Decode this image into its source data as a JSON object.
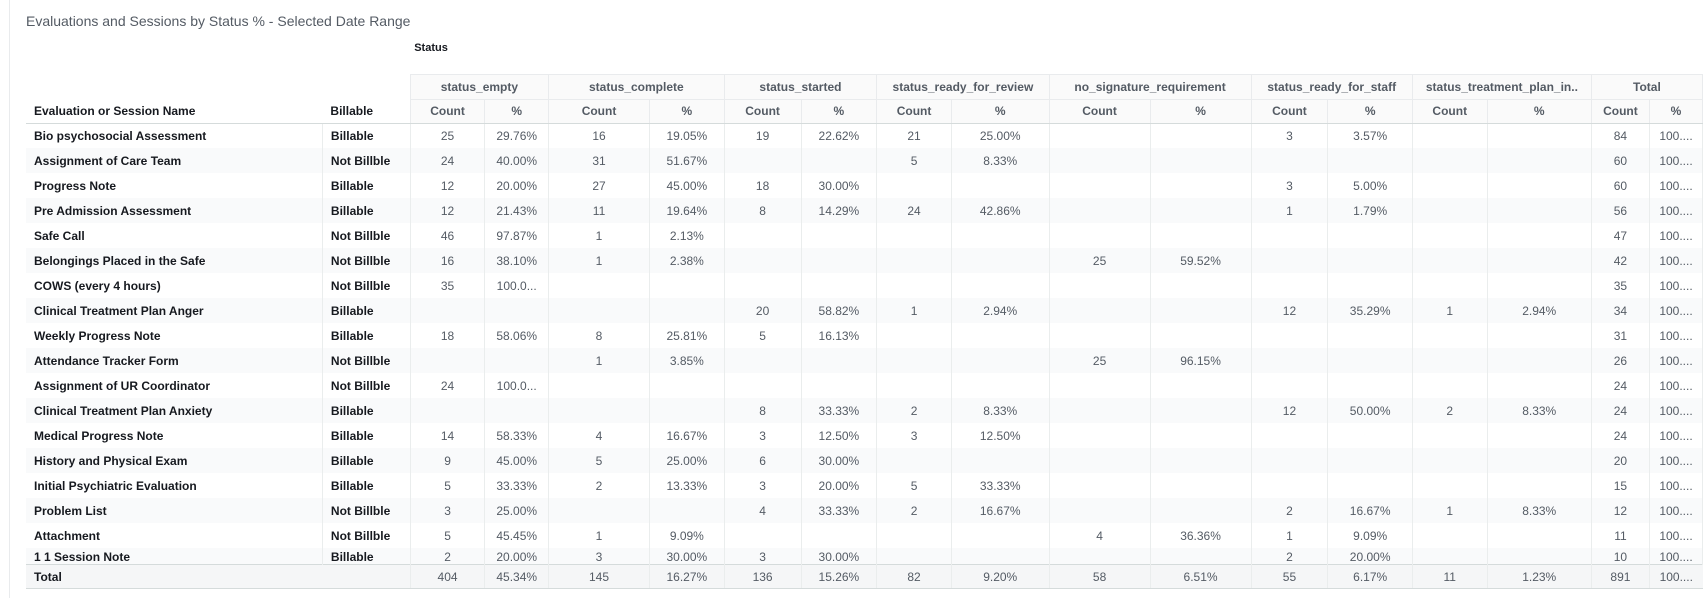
{
  "title": "Evaluations and Sessions by Status % - Selected Date Range",
  "status_label": "Status",
  "row_header_name": "Evaluation or Session Name",
  "row_header_billable": "Billable",
  "groups": [
    {
      "label": "status_empty"
    },
    {
      "label": "status_complete"
    },
    {
      "label": "status_started"
    },
    {
      "label": "status_ready_for_review"
    },
    {
      "label": "no_signature_requirement"
    },
    {
      "label": "status_ready_for_staff"
    },
    {
      "label": "status_treatment_plan_in.."
    },
    {
      "label": "Total"
    }
  ],
  "sub_count": "Count",
  "sub_pct": "%",
  "rows": [
    {
      "name": "Bio psychosocial Assessment",
      "billable": "Billable",
      "cells": [
        "25",
        "29.76%",
        "16",
        "19.05%",
        "19",
        "22.62%",
        "21",
        "25.00%",
        "",
        "",
        "3",
        "3.57%",
        "",
        "",
        "84",
        "100...."
      ]
    },
    {
      "name": "Assignment of Care Team",
      "billable": "Not Billble",
      "cells": [
        "24",
        "40.00%",
        "31",
        "51.67%",
        "",
        "",
        "5",
        "8.33%",
        "",
        "",
        "",
        "",
        "",
        "",
        "60",
        "100...."
      ]
    },
    {
      "name": "Progress Note",
      "billable": "Billable",
      "cells": [
        "12",
        "20.00%",
        "27",
        "45.00%",
        "18",
        "30.00%",
        "",
        "",
        "",
        "",
        "3",
        "5.00%",
        "",
        "",
        "60",
        "100...."
      ]
    },
    {
      "name": "Pre Admission Assessment",
      "billable": "Billable",
      "cells": [
        "12",
        "21.43%",
        "11",
        "19.64%",
        "8",
        "14.29%",
        "24",
        "42.86%",
        "",
        "",
        "1",
        "1.79%",
        "",
        "",
        "56",
        "100...."
      ]
    },
    {
      "name": "Safe Call",
      "billable": "Not Billble",
      "cells": [
        "46",
        "97.87%",
        "1",
        "2.13%",
        "",
        "",
        "",
        "",
        "",
        "",
        "",
        "",
        "",
        "",
        "47",
        "100...."
      ]
    },
    {
      "name": "Belongings Placed in the Safe",
      "billable": "Not Billble",
      "cells": [
        "16",
        "38.10%",
        "1",
        "2.38%",
        "",
        "",
        "",
        "",
        "25",
        "59.52%",
        "",
        "",
        "",
        "",
        "42",
        "100...."
      ]
    },
    {
      "name": "COWS (every 4 hours)",
      "billable": "Not Billble",
      "cells": [
        "35",
        "100.0...",
        "",
        "",
        "",
        "",
        "",
        "",
        "",
        "",
        "",
        "",
        "",
        "",
        "35",
        "100...."
      ]
    },
    {
      "name": "Clinical Treatment Plan Anger",
      "billable": "Billable",
      "cells": [
        "",
        "",
        "",
        "",
        "20",
        "58.82%",
        "1",
        "2.94%",
        "",
        "",
        "12",
        "35.29%",
        "1",
        "2.94%",
        "34",
        "100...."
      ]
    },
    {
      "name": "Weekly Progress Note",
      "billable": "Billable",
      "cells": [
        "18",
        "58.06%",
        "8",
        "25.81%",
        "5",
        "16.13%",
        "",
        "",
        "",
        "",
        "",
        "",
        "",
        "",
        "31",
        "100...."
      ]
    },
    {
      "name": "Attendance Tracker Form",
      "billable": "Not Billble",
      "cells": [
        "",
        "",
        "1",
        "3.85%",
        "",
        "",
        "",
        "",
        "25",
        "96.15%",
        "",
        "",
        "",
        "",
        "26",
        "100...."
      ]
    },
    {
      "name": "Assignment of UR Coordinator",
      "billable": "Not Billble",
      "cells": [
        "24",
        "100.0...",
        "",
        "",
        "",
        "",
        "",
        "",
        "",
        "",
        "",
        "",
        "",
        "",
        "24",
        "100...."
      ]
    },
    {
      "name": "Clinical Treatment Plan Anxiety",
      "billable": "Billable",
      "cells": [
        "",
        "",
        "",
        "",
        "8",
        "33.33%",
        "2",
        "8.33%",
        "",
        "",
        "12",
        "50.00%",
        "2",
        "8.33%",
        "24",
        "100...."
      ]
    },
    {
      "name": "Medical Progress Note",
      "billable": "Billable",
      "cells": [
        "14",
        "58.33%",
        "4",
        "16.67%",
        "3",
        "12.50%",
        "3",
        "12.50%",
        "",
        "",
        "",
        "",
        "",
        "",
        "24",
        "100...."
      ]
    },
    {
      "name": "History and Physical Exam",
      "billable": "Billable",
      "cells": [
        "9",
        "45.00%",
        "5",
        "25.00%",
        "6",
        "30.00%",
        "",
        "",
        "",
        "",
        "",
        "",
        "",
        "",
        "20",
        "100...."
      ]
    },
    {
      "name": "Initial Psychiatric Evaluation",
      "billable": "Billable",
      "cells": [
        "5",
        "33.33%",
        "2",
        "13.33%",
        "3",
        "20.00%",
        "5",
        "33.33%",
        "",
        "",
        "",
        "",
        "",
        "",
        "15",
        "100...."
      ]
    },
    {
      "name": "Problem List",
      "billable": "Not Billble",
      "cells": [
        "3",
        "25.00%",
        "",
        "",
        "4",
        "33.33%",
        "2",
        "16.67%",
        "",
        "",
        "2",
        "16.67%",
        "1",
        "8.33%",
        "12",
        "100...."
      ]
    },
    {
      "name": "Attachment",
      "billable": "Not Billble",
      "cells": [
        "5",
        "45.45%",
        "1",
        "9.09%",
        "",
        "",
        "",
        "",
        "4",
        "36.36%",
        "1",
        "9.09%",
        "",
        "",
        "11",
        "100...."
      ]
    },
    {
      "name": "1 1 Session Note",
      "billable": "Billable",
      "cells": [
        "2",
        "20.00%",
        "3",
        "30.00%",
        "3",
        "30.00%",
        "",
        "",
        "",
        "",
        "2",
        "20.00%",
        "",
        "",
        "10",
        "100...."
      ]
    }
  ],
  "total": {
    "label": "Total",
    "cells": [
      "404",
      "45.34%",
      "145",
      "16.27%",
      "136",
      "15.26%",
      "82",
      "9.20%",
      "58",
      "6.51%",
      "55",
      "6.17%",
      "11",
      "1.23%",
      "891",
      "100...."
    ]
  }
}
